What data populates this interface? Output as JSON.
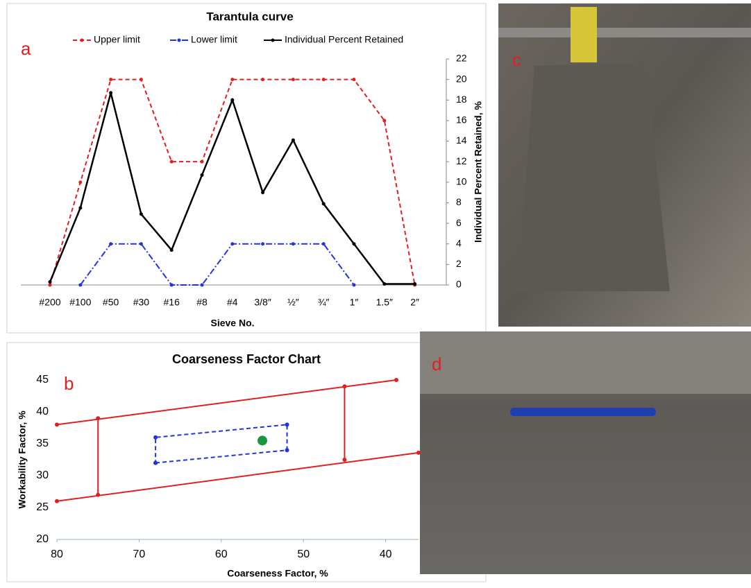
{
  "chart_data": [
    {
      "type": "line",
      "panel_label": "a",
      "title": "Tarantula curve",
      "x_label": "Sieve No.",
      "y_label": "Individual Percent Retained, %",
      "categories": [
        "#200",
        "#100",
        "#50",
        "#30",
        "#16",
        "#8",
        "#4",
        "3/8″",
        "½″",
        "¾″",
        "1″",
        "1.5″",
        "2″"
      ],
      "series": [
        {
          "name": "Upper limit",
          "color": "#e02020",
          "style": "dashed",
          "values": [
            0,
            10,
            20,
            20,
            12,
            12,
            20,
            20,
            20,
            20,
            20,
            16,
            0
          ]
        },
        {
          "name": "Lower limit",
          "color": "#2233dd",
          "style": "dashdot",
          "values": [
            null,
            0,
            4,
            4,
            0,
            0,
            4,
            4,
            4,
            4,
            0,
            null,
            null
          ]
        },
        {
          "name": "Individual Percent Retained",
          "color": "#000000",
          "style": "solid",
          "values": [
            0.3,
            7.5,
            18.7,
            6.9,
            3.4,
            10.7,
            18,
            9,
            14.1,
            7.9,
            4,
            0.1,
            0.1
          ]
        }
      ],
      "ylim": [
        0,
        22
      ],
      "yticks": [
        0,
        2,
        4,
        6,
        8,
        10,
        12,
        14,
        16,
        18,
        20,
        22
      ],
      "y_axis_side": "right"
    },
    {
      "type": "scatter",
      "panel_label": "b",
      "title": "Coarseness Factor Chart",
      "x_label": "Coarseness Factor, %",
      "y_label": "Workability Factor, %",
      "xlim": [
        80,
        36
      ],
      "xticks": [
        80,
        70,
        60,
        50,
        40
      ],
      "ylim": [
        20,
        45
      ],
      "yticks": [
        20,
        25,
        30,
        35,
        40,
        45
      ],
      "series": [
        {
          "color": "#e02020",
          "style": "solid",
          "x": [
            80,
            38.7
          ],
          "y": [
            38,
            45
          ]
        },
        {
          "color": "#e02020",
          "style": "solid",
          "x": [
            80,
            36
          ],
          "y": [
            26,
            33.6
          ]
        },
        {
          "color": "#e02020",
          "style": "solid",
          "x": [
            75,
            75
          ],
          "y": [
            27,
            39
          ]
        },
        {
          "color": "#e02020",
          "style": "solid",
          "x": [
            45,
            45
          ],
          "y": [
            32.5,
            44
          ]
        },
        {
          "color": "#2233dd",
          "style": "dashed",
          "x": [
            68,
            52,
            52,
            68,
            68
          ],
          "y": [
            32,
            34,
            38,
            36,
            32
          ]
        },
        {
          "color": "#1a9641",
          "style": "none",
          "x": [
            55
          ],
          "y": [
            35.5
          ]
        }
      ]
    }
  ],
  "photos": [
    {
      "label": "c"
    },
    {
      "label": "d"
    }
  ]
}
